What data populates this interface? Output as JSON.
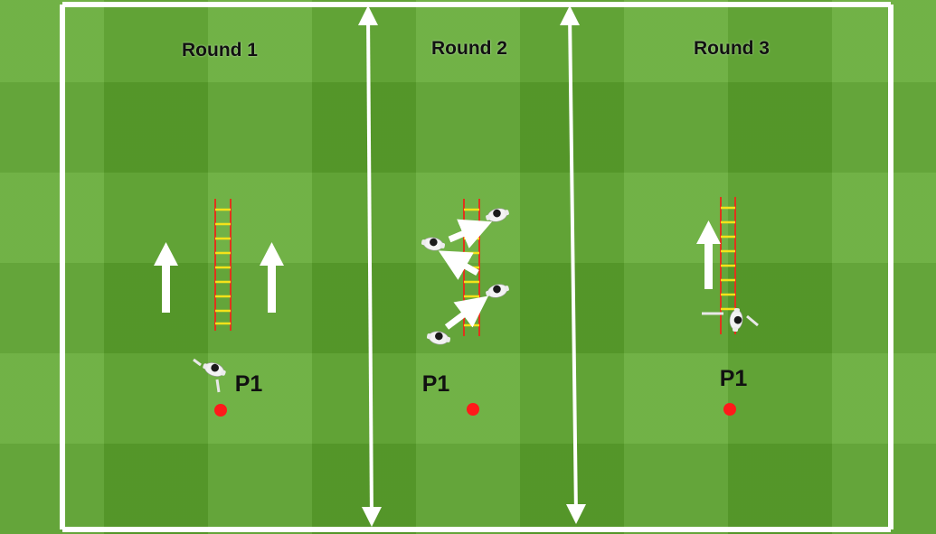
{
  "rounds": [
    {
      "title": "Round 1",
      "player_label": "P1"
    },
    {
      "title": "Round 2",
      "player_label": "P1"
    },
    {
      "title": "Round 3",
      "player_label": "P1"
    }
  ],
  "colors": {
    "grass": "#5ea82e",
    "lines": "#ffffff",
    "ladder_rail": "#e0341c",
    "ladder_rung": "#f4e21a",
    "start_marker": "#ff1a1a"
  },
  "icons": [
    "ladder-icon",
    "player-icon",
    "direction-arrow-icon",
    "start-marker-icon",
    "boundary-arrow-icon"
  ]
}
